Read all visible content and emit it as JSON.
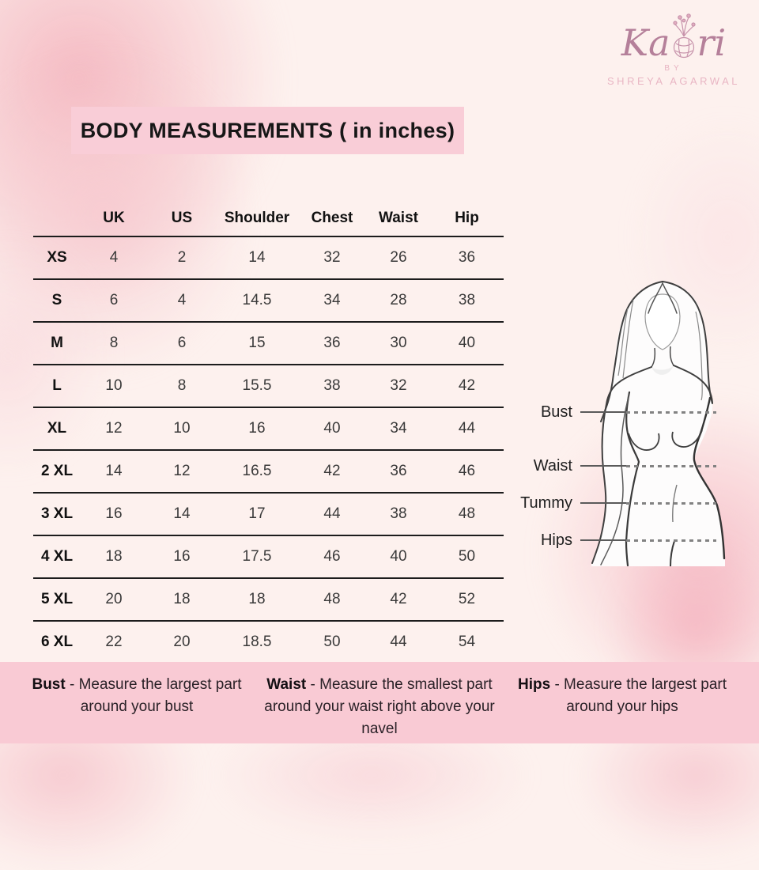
{
  "brand": {
    "name_start": "Ka",
    "name_end": "ri",
    "by_label": "BY",
    "owner": "SHREYA AGARWAL"
  },
  "title": "BODY MEASUREMENTS ( in inches)",
  "table": {
    "headers": [
      "UK",
      "US",
      "Shoulder",
      "Chest",
      "Waist",
      "Hip"
    ],
    "rows": [
      {
        "size": "XS",
        "values": [
          "4",
          "2",
          "14",
          "32",
          "26",
          "36"
        ]
      },
      {
        "size": "S",
        "values": [
          "6",
          "4",
          "14.5",
          "34",
          "28",
          "38"
        ]
      },
      {
        "size": "M",
        "values": [
          "8",
          "6",
          "15",
          "36",
          "30",
          "40"
        ]
      },
      {
        "size": "L",
        "values": [
          "10",
          "8",
          "15.5",
          "38",
          "32",
          "42"
        ]
      },
      {
        "size": "XL",
        "values": [
          "12",
          "10",
          "16",
          "40",
          "34",
          "44"
        ]
      },
      {
        "size": "2 XL",
        "values": [
          "14",
          "12",
          "16.5",
          "42",
          "36",
          "46"
        ]
      },
      {
        "size": "3 XL",
        "values": [
          "16",
          "14",
          "17",
          "44",
          "38",
          "48"
        ]
      },
      {
        "size": "4 XL",
        "values": [
          "18",
          "16",
          "17.5",
          "46",
          "40",
          "50"
        ]
      },
      {
        "size": "5 XL",
        "values": [
          "20",
          "18",
          "18",
          "48",
          "42",
          "52"
        ]
      },
      {
        "size": "6 XL",
        "values": [
          "22",
          "20",
          "18.5",
          "50",
          "44",
          "54"
        ]
      }
    ]
  },
  "figure": {
    "labels": [
      "Bust",
      "Waist",
      "Tummy",
      "Hips"
    ]
  },
  "notes": [
    {
      "term": "Bust",
      "text": "- Measure the largest part around your bust"
    },
    {
      "term": "Waist",
      "text": "- Measure the smallest part around your waist right above your navel"
    },
    {
      "term": "Hips",
      "text": "- Measure the largest part around your hips"
    }
  ],
  "colors": {
    "background": "#fdf1ee",
    "title_bar": "#f9cdd7",
    "footer_band": "#f9cad4",
    "watercolor": "#f5bfc9",
    "table_line": "#1c1c1c",
    "logo_script": "#b5809a",
    "logo_caps": "#e9b6c4"
  }
}
